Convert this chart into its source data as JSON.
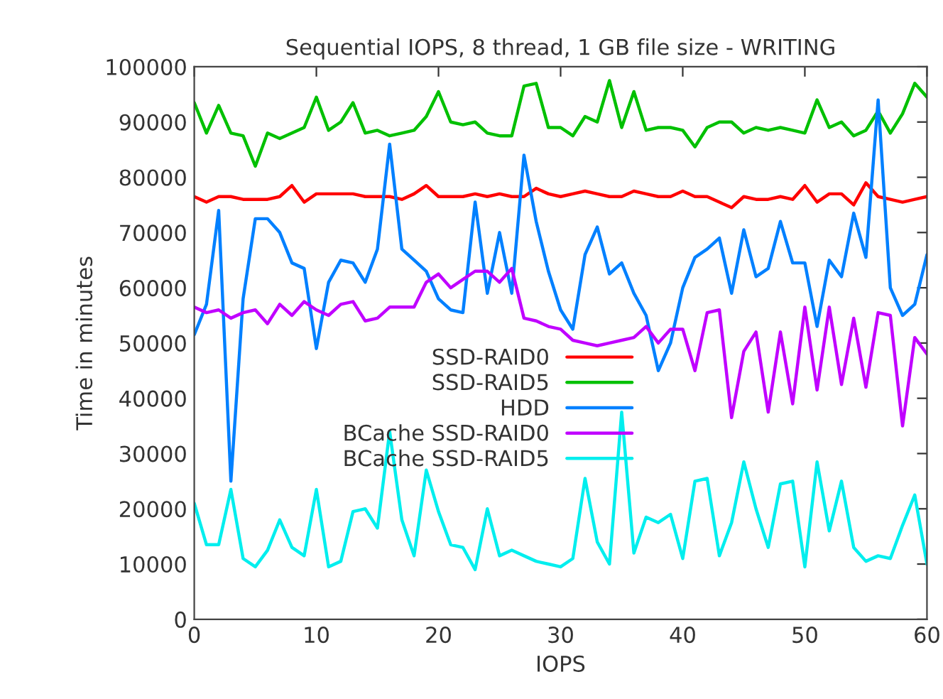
{
  "chart_data": {
    "type": "line",
    "title": "Sequential IOPS, 8 thread, 1 GB file size - WRITING",
    "xlabel": "IOPS",
    "ylabel": "Time in minutes",
    "x": [
      0,
      1,
      2,
      3,
      4,
      5,
      6,
      7,
      8,
      9,
      10,
      11,
      12,
      13,
      14,
      15,
      16,
      17,
      18,
      19,
      20,
      21,
      22,
      23,
      24,
      25,
      26,
      27,
      28,
      29,
      30,
      31,
      32,
      33,
      34,
      35,
      36,
      37,
      38,
      39,
      40,
      41,
      42,
      43,
      44,
      45,
      46,
      47,
      48,
      49,
      50,
      51,
      52,
      53,
      54,
      55,
      56,
      57,
      58,
      59,
      60
    ],
    "xlim": [
      0,
      60
    ],
    "xticks": [
      0,
      10,
      20,
      30,
      40,
      50,
      60
    ],
    "ylim": [
      0,
      100000
    ],
    "yticks": [
      0,
      10000,
      20000,
      30000,
      40000,
      50000,
      60000,
      70000,
      80000,
      90000,
      100000
    ],
    "grid": false,
    "legend": "center",
    "marker": "none",
    "line_style": "solid",
    "series": [
      {
        "name": "SSD-RAID0",
        "color": "#ff0000",
        "values": [
          76500,
          75500,
          76500,
          76500,
          76000,
          76000,
          76000,
          76500,
          78500,
          75500,
          77000,
          77000,
          77000,
          77000,
          76500,
          76500,
          76500,
          76000,
          77000,
          78500,
          76500,
          76500,
          76500,
          77000,
          76500,
          77000,
          76500,
          76500,
          78000,
          77000,
          76500,
          77000,
          77500,
          77000,
          76500,
          76500,
          77500,
          77000,
          76500,
          76500,
          77500,
          76500,
          76500,
          75500,
          74500,
          76500,
          76000,
          76000,
          76500,
          76000,
          78500,
          75500,
          77000,
          77000,
          75000,
          79000,
          76500,
          76000,
          75500,
          76000,
          76500
        ]
      },
      {
        "name": "SSD-RAID5",
        "color": "#00c000",
        "values": [
          93500,
          88000,
          93000,
          88000,
          87500,
          82000,
          88000,
          87000,
          88000,
          89000,
          94500,
          88500,
          90000,
          93500,
          88000,
          88500,
          87500,
          88000,
          88500,
          91000,
          95500,
          90000,
          89500,
          90000,
          88000,
          87500,
          87500,
          96500,
          97000,
          89000,
          89000,
          87500,
          91000,
          90000,
          97500,
          89000,
          95500,
          88500,
          89000,
          89000,
          88500,
          85500,
          89000,
          90000,
          90000,
          88000,
          89000,
          88500,
          89000,
          88500,
          88000,
          94000,
          89000,
          90000,
          87500,
          88500,
          92000,
          88000,
          91500,
          97000,
          94500
        ]
      },
      {
        "name": "HDD",
        "color": "#0080ff",
        "values": [
          51500,
          57000,
          74000,
          25000,
          58000,
          72500,
          72500,
          70000,
          64500,
          63500,
          49000,
          61000,
          65000,
          64500,
          61000,
          67000,
          86000,
          67000,
          65000,
          63000,
          58000,
          56000,
          55500,
          75500,
          59000,
          70000,
          59000,
          84000,
          72000,
          63000,
          56000,
          52500,
          66000,
          71000,
          62500,
          64500,
          59000,
          55000,
          45000,
          50000,
          60000,
          65500,
          67000,
          69000,
          59000,
          70500,
          62000,
          63500,
          72000,
          64500,
          64500,
          53000,
          65000,
          62000,
          73500,
          65500,
          94000,
          60000,
          55000,
          57000,
          66000
        ]
      },
      {
        "name": "BCache SSD-RAID0",
        "color": "#c000ff",
        "values": [
          56500,
          55500,
          56000,
          54500,
          55500,
          56000,
          53500,
          57000,
          55000,
          57500,
          56000,
          55000,
          57000,
          57500,
          54000,
          54500,
          56500,
          56500,
          56500,
          61000,
          62500,
          60000,
          61500,
          63000,
          63000,
          61000,
          63500,
          54500,
          54000,
          53000,
          52500,
          50500,
          50000,
          49500,
          50000,
          50500,
          51000,
          53000,
          50000,
          52500,
          52500,
          45000,
          55500,
          56000,
          36500,
          48500,
          52000,
          37500,
          52000,
          39000,
          56500,
          41500,
          56500,
          42500,
          54500,
          42000,
          55500,
          55000,
          35000,
          51000,
          48000
        ]
      },
      {
        "name": "BCache SSD-RAID5",
        "color": "#00eeee",
        "values": [
          21000,
          13500,
          13500,
          23500,
          11000,
          9500,
          12500,
          18000,
          13000,
          11500,
          23500,
          9500,
          10500,
          19500,
          20000,
          16500,
          34000,
          18000,
          11500,
          27000,
          19500,
          13500,
          13000,
          9000,
          20000,
          11500,
          12500,
          11500,
          10500,
          10000,
          9500,
          11000,
          25500,
          14000,
          10000,
          37500,
          12000,
          18500,
          17500,
          19000,
          11000,
          25000,
          25500,
          11500,
          17500,
          28500,
          20000,
          13000,
          24500,
          25000,
          9500,
          28500,
          16000,
          25000,
          13000,
          10500,
          11500,
          11000,
          17000,
          22500,
          10000
        ]
      }
    ]
  }
}
